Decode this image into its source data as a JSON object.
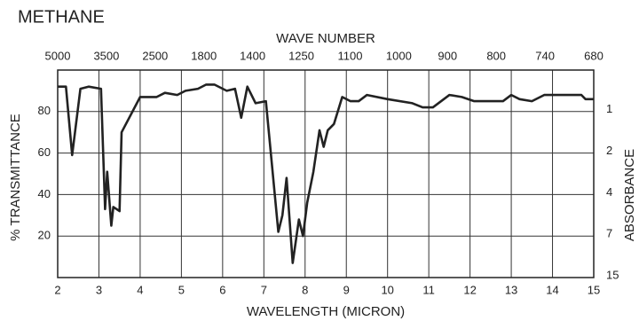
{
  "chart_data": {
    "type": "line",
    "title": "METHANE",
    "top_axis_label": "WAVE NUMBER",
    "top_ticks": [
      5000,
      3500,
      2500,
      1800,
      1400,
      1250,
      1100,
      1000,
      900,
      800,
      740,
      680
    ],
    "x_label": "WAVELENGTH (MICRON)",
    "y_label": "% TRANSMITTANCE",
    "y2_label": "ABSORBANCE",
    "xlim": [
      2,
      15
    ],
    "xticks": [
      2,
      3,
      4,
      5,
      6,
      7,
      8,
      9,
      10,
      11,
      12,
      13,
      14,
      15
    ],
    "ylim": [
      0,
      100
    ],
    "yticks": [
      20,
      40,
      60,
      80
    ],
    "y2ticks": [
      1,
      2,
      4,
      7,
      15
    ],
    "grid": true,
    "series": [
      {
        "color": "#222222",
        "x": [
          2.0,
          2.2,
          2.35,
          2.55,
          2.75,
          3.05,
          3.15,
          3.2,
          3.3,
          3.35,
          3.5,
          3.55,
          4.0,
          4.4,
          4.6,
          4.9,
          5.1,
          5.4,
          5.6,
          5.8,
          6.1,
          6.3,
          6.45,
          6.6,
          6.8,
          7.05,
          7.35,
          7.45,
          7.55,
          7.7,
          7.85,
          7.95,
          8.05,
          8.2,
          8.35,
          8.45,
          8.55,
          8.7,
          8.9,
          9.1,
          9.3,
          9.5,
          10.0,
          10.6,
          10.85,
          11.1,
          11.3,
          11.5,
          11.8,
          12.1,
          12.8,
          13.0,
          13.2,
          13.5,
          13.8,
          14.0,
          14.7,
          14.8,
          15.0
        ],
        "values": [
          92,
          92,
          59,
          91,
          92,
          91,
          33,
          51,
          25,
          34,
          32,
          70,
          87,
          87,
          89,
          88,
          90,
          91,
          93,
          93,
          90,
          91,
          77,
          92,
          84,
          85,
          22,
          30,
          48,
          7,
          28,
          20,
          36,
          51,
          71,
          63,
          71,
          74,
          87,
          85,
          85,
          88,
          86,
          84,
          82,
          82,
          85,
          88,
          87,
          85,
          85,
          88,
          86,
          85,
          88,
          88,
          88,
          86,
          86
        ]
      }
    ]
  }
}
